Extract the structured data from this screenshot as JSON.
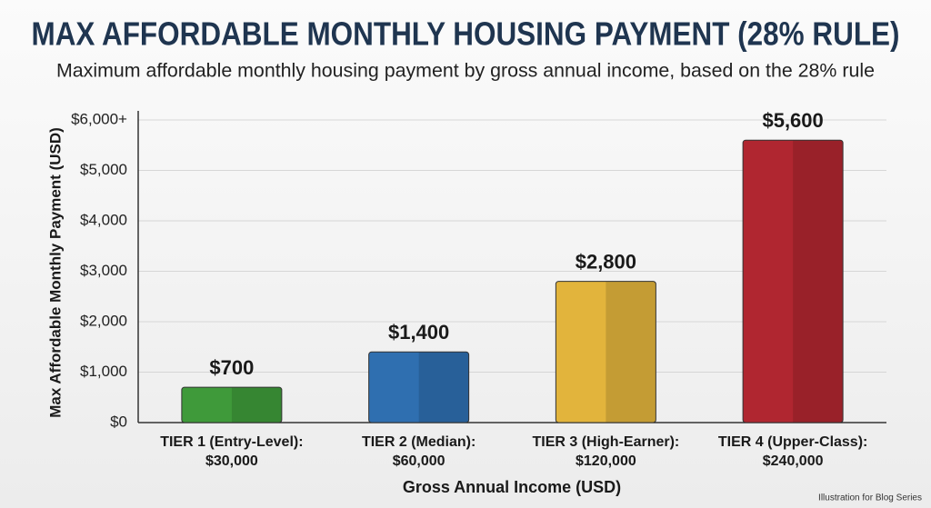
{
  "chart_data": {
    "type": "bar",
    "title": "MAX AFFORDABLE MONTHLY HOUSING PAYMENT (28% RULE)",
    "subtitle": "Maximum affordable monthly housing payment by gross annual income, based on the 28% rule",
    "y_label": "Max Affordable Monthly Payment (USD)",
    "x_label": "Gross Annual Income (USD)",
    "annotation": "Illustration for Blog Series",
    "categories": [
      [
        "TIER 1 (Entry-Level):",
        "$30,000"
      ],
      [
        "TIER 2 (Median):",
        "$60,000"
      ],
      [
        "TIER 3 (High-Earner):",
        "$120,000"
      ],
      [
        "TIER 4 (Upper-Class):",
        "$240,000"
      ]
    ],
    "values": [
      700,
      1400,
      2800,
      5600
    ],
    "value_labels": [
      "$700",
      "$1,400",
      "$2,800",
      "$5,600"
    ],
    "colors": [
      "#3f9a3a",
      "#2f6fb0",
      "#e2b43c",
      "#b02630"
    ],
    "ylim": [
      0,
      6000
    ],
    "yticks": [
      {
        "value": 0,
        "label": "$0"
      },
      {
        "value": 1000,
        "label": "$1,000"
      },
      {
        "value": 2000,
        "label": "$2,000"
      },
      {
        "value": 3000,
        "label": "$3,000"
      },
      {
        "value": 4000,
        "label": "$4,000"
      },
      {
        "value": 5000,
        "label": "$5,000"
      },
      {
        "value": 6000,
        "label": "$6,000+"
      }
    ],
    "grid": true
  }
}
